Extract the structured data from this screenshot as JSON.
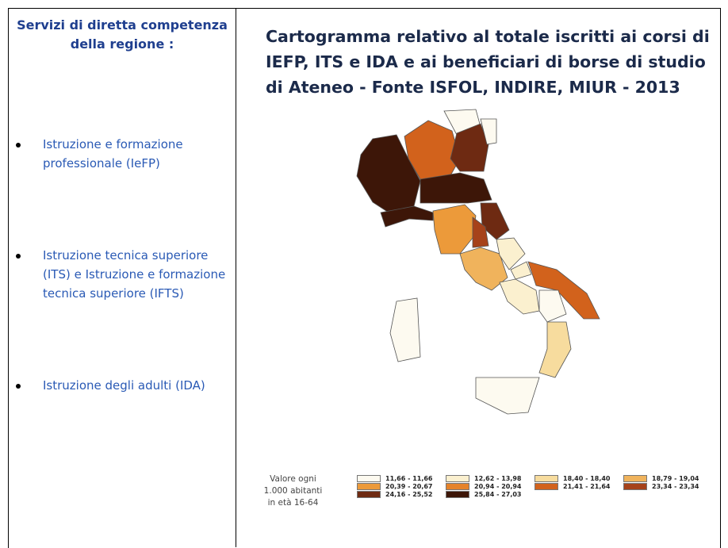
{
  "left": {
    "heading": "Servizi di diretta competenza della regione :",
    "items": [
      "Istruzione e formazione professionale (IeFP)",
      "Istruzione tecnica superiore (ITS) e Istruzione e formazione tecnica superiore (IFTS)",
      "Istruzione degli adulti (IDA)"
    ]
  },
  "right": {
    "title": "Cartogramma relativo al totale iscritti ai corsi di IEFP, ITS e IDA e ai beneficiari di borse di studio di Ateneo - Fonte ISFOL, INDIRE, MIUR - 2013",
    "legend": {
      "label": "Valore ogni 1.000 abitanti in età 16-64",
      "items": [
        {
          "label": "11,66 - 11,66",
          "color": "#fdfaf0"
        },
        {
          "label": "12,62 - 13,98",
          "color": "#fbf0cf"
        },
        {
          "label": "18,40 - 18,40",
          "color": "#f7dc9e"
        },
        {
          "label": "18,79 - 19,04",
          "color": "#f0b35c"
        },
        {
          "label": "20,39 - 20,67",
          "color": "#ec9a3a"
        },
        {
          "label": "20,94 - 20,94",
          "color": "#e5832a"
        },
        {
          "label": "21,41 - 21,64",
          "color": "#d2621c"
        },
        {
          "label": "23,34 - 23,34",
          "color": "#a6421a"
        },
        {
          "label": "24,16 - 25,52",
          "color": "#6e2a12"
        },
        {
          "label": "25,84 - 27,03",
          "color": "#3d1608"
        }
      ]
    }
  }
}
